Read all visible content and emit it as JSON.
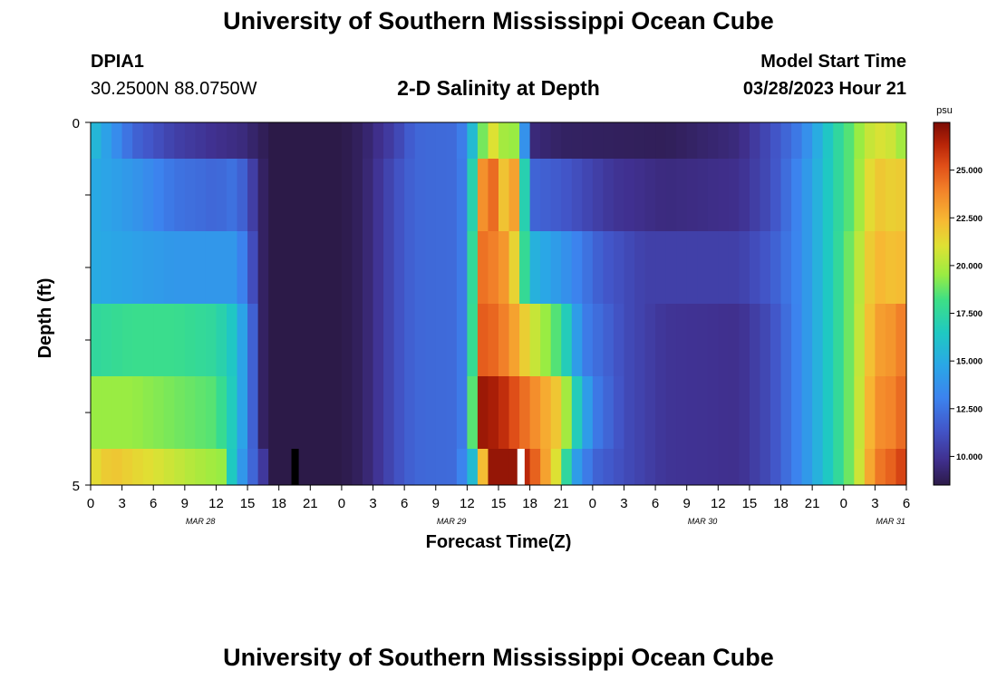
{
  "page": {
    "title": "University of Southern Mississippi Ocean Cube",
    "station_id": "DPIA1",
    "coordinates": "30.2500N  88.0750W",
    "plot_title": "2-D Salinity at Depth",
    "model_start_label": "Model Start Time",
    "model_start_value": "03/28/2023 Hour 21",
    "bottom_title": "University of Southern Mississippi Ocean Cube"
  },
  "chart_data": {
    "type": "heatmap",
    "title": "2-D Salinity at Depth",
    "xlabel": "Forecast Time(Z)",
    "ylabel": "Depth (ft)",
    "x_tick_labels": [
      "0",
      "3",
      "6",
      "9",
      "12",
      "15",
      "18",
      "21",
      "0",
      "3",
      "6",
      "9",
      "12",
      "15",
      "18",
      "21",
      "0",
      "3",
      "6",
      "9",
      "12",
      "15",
      "18",
      "21",
      "0",
      "3",
      "6"
    ],
    "date_labels": [
      {
        "label": "MAR 28",
        "tick_index": 3.5
      },
      {
        "label": "MAR 29",
        "tick_index": 11.5
      },
      {
        "label": "MAR 30",
        "tick_index": 19.5
      },
      {
        "label": "MAR 31",
        "tick_index": 25.5
      }
    ],
    "x_range_hours": [
      0,
      78
    ],
    "y_range_ft": [
      0,
      5
    ],
    "y_tick_labels": [
      "0",
      "5"
    ],
    "colorbar": {
      "unit": "psu",
      "range": [
        8.5,
        27.5
      ],
      "tick_values": [
        10,
        12.5,
        15,
        17.5,
        20,
        22.5,
        25
      ],
      "tick_labels": [
        "10.000",
        "12.500",
        "15.000",
        "17.500",
        "20.000",
        "22.500",
        "25.000"
      ]
    },
    "depth_rows": [
      {
        "depth_ft": 0.25,
        "knots": [
          [
            0,
            16
          ],
          [
            4,
            12
          ],
          [
            8,
            10.5
          ],
          [
            12,
            9.8
          ],
          [
            14.5,
            9.5
          ],
          [
            16.5,
            8.8
          ],
          [
            17.5,
            8.5
          ],
          [
            24,
            8.5
          ],
          [
            26,
            9
          ],
          [
            29,
            10.5
          ],
          [
            31,
            12
          ],
          [
            35,
            12.2
          ],
          [
            36,
            13.5
          ],
          [
            37,
            18
          ],
          [
            38.5,
            21
          ],
          [
            39.2,
            19
          ],
          [
            40,
            21
          ],
          [
            41,
            18
          ],
          [
            42,
            9.5
          ],
          [
            45,
            9
          ],
          [
            55,
            8.8
          ],
          [
            62,
            9.5
          ],
          [
            65,
            11
          ],
          [
            68,
            13
          ],
          [
            71,
            17
          ],
          [
            73,
            19
          ],
          [
            75,
            21
          ],
          [
            77,
            20.5
          ],
          [
            78,
            19
          ]
        ]
      },
      {
        "depth_ft": 1.0,
        "knots": [
          [
            0,
            15
          ],
          [
            4,
            14
          ],
          [
            8,
            12.5
          ],
          [
            12,
            12
          ],
          [
            14,
            12.5
          ],
          [
            16.5,
            9
          ],
          [
            17.5,
            8.5
          ],
          [
            24,
            8.5
          ],
          [
            26,
            9
          ],
          [
            29,
            11
          ],
          [
            31,
            12
          ],
          [
            35,
            12.2
          ],
          [
            36.2,
            13.5
          ],
          [
            37,
            23
          ],
          [
            38.5,
            24.5
          ],
          [
            39.5,
            22
          ],
          [
            40,
            24
          ],
          [
            41,
            22
          ],
          [
            42,
            12
          ],
          [
            45,
            11.5
          ],
          [
            50,
            10
          ],
          [
            55,
            9.5
          ],
          [
            62,
            9.8
          ],
          [
            65,
            11
          ],
          [
            68,
            13.5
          ],
          [
            71,
            17
          ],
          [
            73,
            19
          ],
          [
            75,
            22
          ],
          [
            77,
            21.5
          ],
          [
            78,
            22
          ]
        ]
      },
      {
        "depth_ft": 2.0,
        "knots": [
          [
            0,
            15
          ],
          [
            4,
            14.5
          ],
          [
            8,
            14
          ],
          [
            12,
            14
          ],
          [
            14,
            14
          ],
          [
            16.5,
            9
          ],
          [
            17.5,
            8.5
          ],
          [
            24,
            8.5
          ],
          [
            26,
            9
          ],
          [
            29,
            11
          ],
          [
            31,
            12
          ],
          [
            35,
            12.2
          ],
          [
            36.2,
            13.5
          ],
          [
            37,
            24.5
          ],
          [
            38.5,
            24
          ],
          [
            40,
            23
          ],
          [
            41,
            20
          ],
          [
            42,
            15.5
          ],
          [
            45,
            14
          ],
          [
            49,
            11.5
          ],
          [
            53,
            10.5
          ],
          [
            56,
            10.5
          ],
          [
            62,
            10.5
          ],
          [
            65,
            11.5
          ],
          [
            68,
            13.5
          ],
          [
            71,
            17
          ],
          [
            73,
            19.5
          ],
          [
            75,
            22.5
          ],
          [
            77,
            22
          ],
          [
            78,
            22.5
          ]
        ]
      },
      {
        "depth_ft": 3.0,
        "knots": [
          [
            0,
            17.5
          ],
          [
            4,
            18
          ],
          [
            8,
            18
          ],
          [
            12,
            17.5
          ],
          [
            14,
            16
          ],
          [
            16.5,
            9
          ],
          [
            17.5,
            8.5
          ],
          [
            24,
            8.5
          ],
          [
            26,
            9
          ],
          [
            29,
            11
          ],
          [
            31,
            12
          ],
          [
            35,
            12.2
          ],
          [
            36.2,
            13.5
          ],
          [
            37,
            25
          ],
          [
            39,
            24.5
          ],
          [
            40.5,
            23
          ],
          [
            42,
            21
          ],
          [
            45,
            18
          ],
          [
            47,
            13
          ],
          [
            51,
            11
          ],
          [
            55,
            10
          ],
          [
            62,
            9.8
          ],
          [
            65,
            11
          ],
          [
            68,
            13.5
          ],
          [
            71,
            17
          ],
          [
            73,
            19.5
          ],
          [
            75,
            23
          ],
          [
            77,
            23.5
          ],
          [
            78,
            24.5
          ]
        ]
      },
      {
        "depth_ft": 4.0,
        "knots": [
          [
            0,
            19.5
          ],
          [
            4,
            19.5
          ],
          [
            8,
            19
          ],
          [
            12,
            18.5
          ],
          [
            14,
            16
          ],
          [
            16.5,
            9
          ],
          [
            17.5,
            8.5
          ],
          [
            24,
            8.5
          ],
          [
            26,
            9
          ],
          [
            29,
            11
          ],
          [
            31,
            12
          ],
          [
            35,
            12.2
          ],
          [
            36.2,
            13.5
          ],
          [
            37,
            27
          ],
          [
            39,
            26.5
          ],
          [
            42,
            24
          ],
          [
            45,
            21.5
          ],
          [
            46,
            18
          ],
          [
            48,
            13
          ],
          [
            51,
            11
          ],
          [
            55,
            10
          ],
          [
            62,
            9.8
          ],
          [
            65,
            11
          ],
          [
            68,
            13.5
          ],
          [
            71,
            17
          ],
          [
            73,
            19.5
          ],
          [
            75,
            23.5
          ],
          [
            77,
            24
          ],
          [
            78,
            25
          ]
        ]
      },
      {
        "depth_ft": 4.75,
        "knots": [
          [
            0,
            21
          ],
          [
            2,
            22
          ],
          [
            6,
            21
          ],
          [
            10,
            20
          ],
          [
            12.5,
            19.5
          ],
          [
            14,
            15
          ],
          [
            16,
            11
          ],
          [
            17.5,
            8.5
          ],
          [
            24,
            8.5
          ],
          [
            26,
            9
          ],
          [
            29,
            11
          ],
          [
            31,
            12
          ],
          [
            35,
            12.2
          ],
          [
            36,
            14
          ],
          [
            37,
            17.5
          ],
          [
            38,
            27
          ],
          [
            41,
            27
          ],
          [
            43,
            24
          ],
          [
            45,
            20
          ],
          [
            46,
            15
          ],
          [
            48,
            12
          ],
          [
            51,
            11
          ],
          [
            55,
            10
          ],
          [
            62,
            9.8
          ],
          [
            65,
            11
          ],
          [
            68,
            13.5
          ],
          [
            71,
            17
          ],
          [
            73,
            19.5
          ],
          [
            75,
            24
          ],
          [
            77,
            25
          ],
          [
            78,
            26
          ]
        ]
      }
    ],
    "masked_cells": [
      {
        "depth_row": 5,
        "hour_start": 19.2,
        "hour_end": 19.9,
        "color": "#000000"
      },
      {
        "depth_row": 5,
        "hour_start": 40.8,
        "hour_end": 41.5,
        "color": "#ffffff"
      }
    ]
  }
}
